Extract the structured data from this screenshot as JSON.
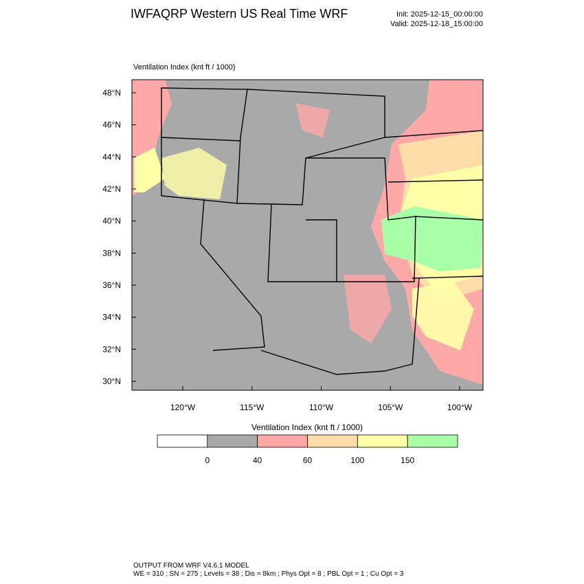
{
  "header": {
    "title": "IWFAQRP Western US Real Time WRF",
    "init": "Init: 2025-12-15_00:00:00",
    "valid": "Valid: 2025-12-18_15:00:00"
  },
  "map": {
    "subtitle": "Ventilation Index   (knt ft / 1000)",
    "lat_ticks": [
      {
        "value": 48,
        "label": "48°N"
      },
      {
        "value": 46,
        "label": "46°N"
      },
      {
        "value": 44,
        "label": "44°N"
      },
      {
        "value": 42,
        "label": "42°N"
      },
      {
        "value": 40,
        "label": "40°N"
      },
      {
        "value": 38,
        "label": "38°N"
      },
      {
        "value": 36,
        "label": "36°N"
      },
      {
        "value": 34,
        "label": "34°N"
      },
      {
        "value": 32,
        "label": "32°N"
      },
      {
        "value": 30,
        "label": "30°N"
      }
    ],
    "lon_ticks": [
      {
        "value": -120,
        "label": "120°W"
      },
      {
        "value": -115,
        "label": "115°W"
      },
      {
        "value": -110,
        "label": "110°W"
      },
      {
        "value": -105,
        "label": "105°W"
      },
      {
        "value": -100,
        "label": "100°W"
      }
    ]
  },
  "colorbar": {
    "title": "Ventilation Index   (knt ft / 1000)",
    "levels": [
      0,
      40,
      60,
      100,
      150
    ],
    "colors": [
      "#ffffff",
      "#a9a9a9",
      "#ffa8a8",
      "#ffdca8",
      "#ffffa8",
      "#a8ffa8"
    ]
  },
  "footer": {
    "line1": "OUTPUT FROM WRF V4.6.1 MODEL",
    "line2": "WE = 310 ; SN = 275 ; Levels = 38 ; Dis = 8km ; Phys Opt = 8 ; PBL Opt = 1 ; Cu Opt = 3"
  }
}
